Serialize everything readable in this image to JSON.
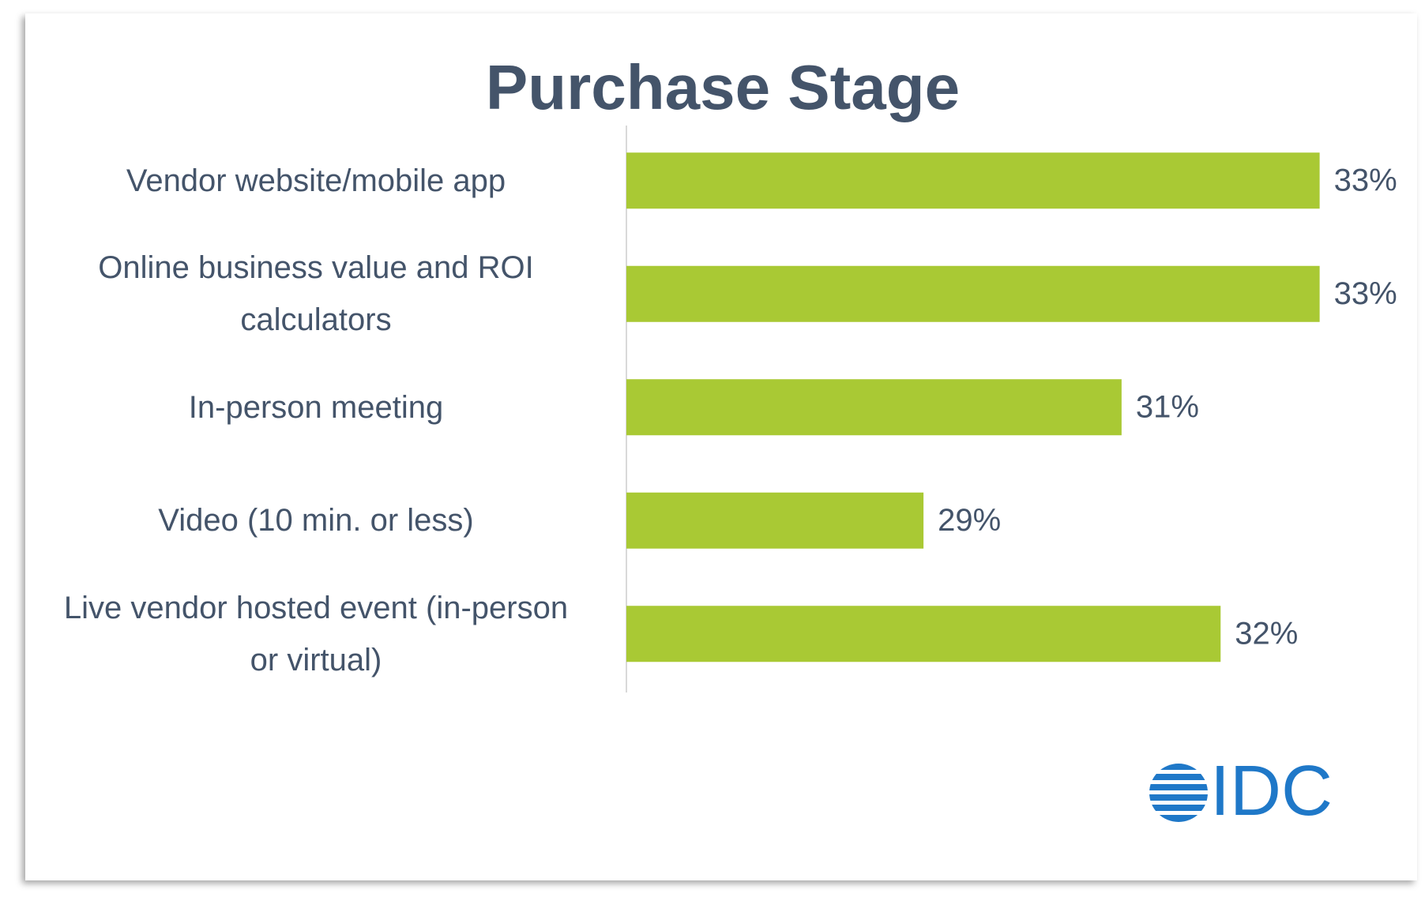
{
  "chart_data": {
    "type": "hbar",
    "title": "Purchase Stage",
    "categories": [
      "Vendor website/mobile app",
      "Online business value and ROI calculators",
      "In-person meeting",
      "Video (10 min. or less)",
      "Live vendor hosted event (in-person or virtual)"
    ],
    "values": [
      33,
      33,
      31,
      29,
      32
    ],
    "value_labels": [
      "33%",
      "33%",
      "31%",
      "29%",
      "32%"
    ],
    "color": "#a9c934",
    "xlim": [
      26,
      34
    ],
    "logo": "IDC"
  }
}
